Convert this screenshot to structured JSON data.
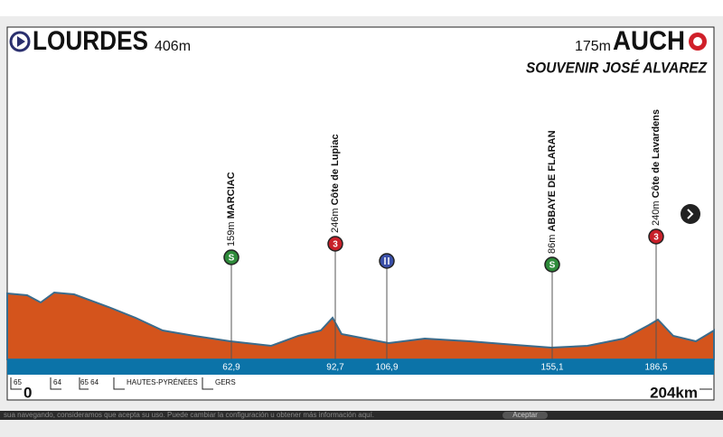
{
  "header": {
    "start": "LOURDES",
    "start_elevation": "406m",
    "finish_elevation": "175m",
    "finish": "AUCH",
    "subtitle": "SOUVENIR JOSÉ ALVAREZ"
  },
  "points": [
    {
      "elevation": "159m",
      "name": "MARCIAC",
      "km": "62,9",
      "icon": "S"
    },
    {
      "elevation": "246m",
      "name": "Côte de Lupiac",
      "km": "92,7",
      "icon": "3"
    },
    {
      "km": "106,9"
    },
    {
      "elevation": "86m",
      "name": "ABBAYE DE FLARAN",
      "km": "155,1",
      "icon": "S"
    },
    {
      "elevation": "240m",
      "name": "Côte de Lavardens",
      "km": "186,5",
      "icon": "3"
    }
  ],
  "footer": {
    "start_km": "0",
    "total_km": "204km",
    "regions": [
      "65",
      "64",
      "65 64",
      "HAUTES-PYRÉNÉES",
      "GERS"
    ]
  },
  "cookie_bar": {
    "text": "sua navegando, consideramos que acepta su uso. Puede cambiar la configuración u obtener más información aquí.",
    "button": "Aceptar"
  }
}
